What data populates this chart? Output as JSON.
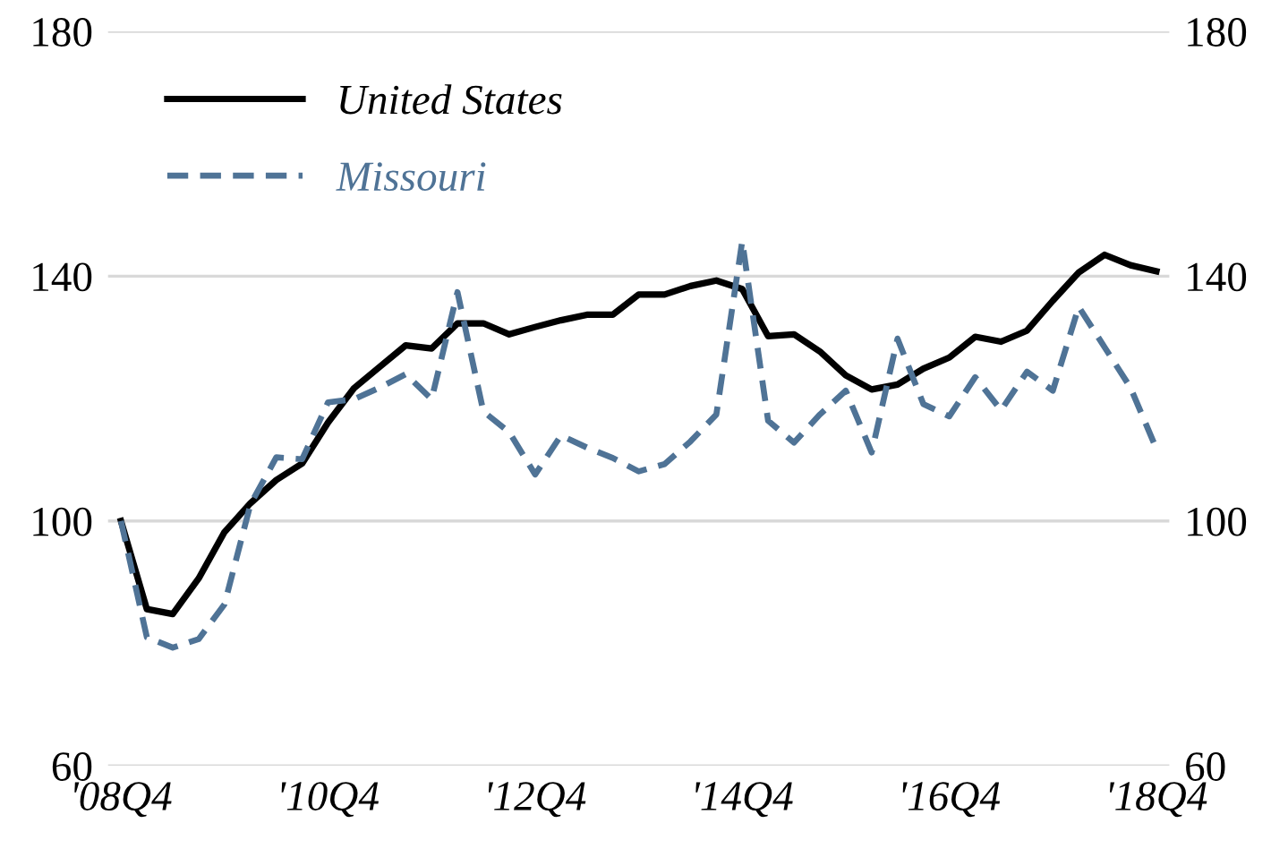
{
  "chart_data": {
    "type": "line",
    "categories": [
      "'08Q4",
      null,
      null,
      null,
      null,
      null,
      null,
      null,
      "'10Q4",
      null,
      null,
      null,
      null,
      null,
      null,
      null,
      "'12Q4",
      null,
      null,
      null,
      null,
      null,
      null,
      null,
      "'14Q4",
      null,
      null,
      null,
      null,
      null,
      null,
      null,
      "'16Q4",
      null,
      null,
      null,
      null,
      null,
      null,
      null,
      "'18Q4"
    ],
    "series": [
      {
        "name": "United States",
        "color": "#000000",
        "line_style": "solid",
        "values": [
          100,
          85.6,
          84.8,
          90.6,
          98.2,
          102.9,
          106.7,
          109.4,
          116.1,
          121.7,
          125.2,
          128.7,
          128.2,
          132.3,
          132.3,
          130.5,
          131.7,
          132.8,
          133.7,
          133.7,
          137,
          137,
          138.4,
          139.3,
          137.9,
          130.2,
          130.5,
          127.7,
          123.8,
          121.5,
          122.3,
          124.9,
          126.7,
          130.1,
          129.3,
          131.1,
          136,
          140.6,
          143.5,
          141.8,
          140.8
        ]
      },
      {
        "name": "Missouri",
        "color": "#4f7396",
        "line_style": "dashed",
        "values": [
          100,
          81,
          79.3,
          80.7,
          86.4,
          102.7,
          110.4,
          110.1,
          119.4,
          119.9,
          121.8,
          124,
          119.9,
          137.4,
          117.9,
          114.5,
          107.6,
          114,
          112,
          110.3,
          108.1,
          109.3,
          113,
          117.4,
          145.7,
          116.4,
          112.8,
          117.4,
          121.3,
          111.2,
          129.8,
          119.1,
          117.1,
          123.5,
          118.1,
          124.4,
          121.3,
          135,
          128.4,
          121.8,
          111.8
        ]
      }
    ],
    "ylim": [
      60,
      180
    ],
    "yticks": [
      60,
      100,
      140,
      180
    ],
    "y2lim": [
      60,
      180
    ],
    "y2ticks": [
      60,
      100,
      140,
      180
    ],
    "grid": "y",
    "legend": "top left",
    "marker": "none"
  }
}
